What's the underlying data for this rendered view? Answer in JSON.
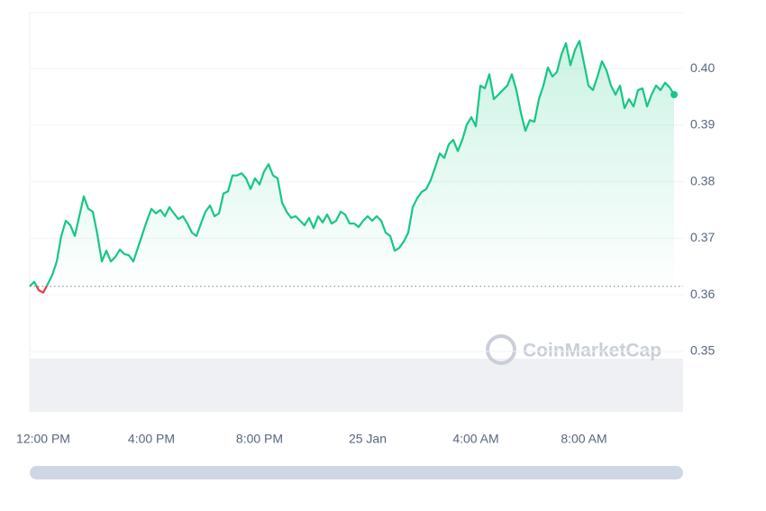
{
  "chart_data": {
    "type": "line",
    "color": "#16c784",
    "down_color": "#ea3943",
    "baseline": 0.3615,
    "watermark": "CoinMarketCap",
    "xlim": [
      -30,
      1420
    ],
    "xticks": [
      {
        "value": 0,
        "label": "12:00 PM"
      },
      {
        "value": 240,
        "label": "4:00 PM"
      },
      {
        "value": 480,
        "label": "8:00 PM"
      },
      {
        "value": 720,
        "label": "25 Jan"
      },
      {
        "value": 960,
        "label": "4:00 AM"
      },
      {
        "value": 1200,
        "label": "8:00 AM"
      }
    ],
    "ylim": [
      0.3393,
      0.4099
    ],
    "yticks": [
      0.35,
      0.36,
      0.37,
      0.38,
      0.39,
      {
        "value": 0.4,
        "label": "0.40"
      }
    ],
    "grid": true,
    "x": [
      -30,
      -20,
      -10,
      0,
      10,
      20,
      30,
      40,
      50,
      60,
      70,
      80,
      90,
      100,
      110,
      120,
      130,
      140,
      150,
      160,
      170,
      180,
      190,
      200,
      210,
      220,
      230,
      240,
      250,
      260,
      270,
      280,
      290,
      300,
      310,
      320,
      330,
      340,
      350,
      360,
      370,
      380,
      390,
      400,
      410,
      420,
      430,
      440,
      450,
      460,
      470,
      480,
      490,
      500,
      510,
      520,
      530,
      540,
      550,
      560,
      570,
      580,
      590,
      600,
      610,
      620,
      630,
      640,
      650,
      660,
      670,
      680,
      690,
      700,
      710,
      720,
      730,
      740,
      750,
      760,
      770,
      780,
      790,
      800,
      810,
      820,
      830,
      840,
      850,
      860,
      870,
      880,
      890,
      900,
      910,
      920,
      930,
      940,
      950,
      960,
      970,
      980,
      990,
      1000,
      1010,
      1020,
      1030,
      1040,
      1050,
      1060,
      1070,
      1080,
      1090,
      1100,
      1110,
      1120,
      1130,
      1140,
      1150,
      1160,
      1170,
      1180,
      1190,
      1200,
      1210,
      1220,
      1230,
      1240,
      1250,
      1260,
      1270,
      1280,
      1290,
      1300,
      1310,
      1320,
      1330,
      1340,
      1350,
      1360,
      1370,
      1380,
      1390,
      1400
    ],
    "values": [
      0.3615,
      0.3623,
      0.3608,
      0.3604,
      0.3619,
      0.3635,
      0.3659,
      0.3704,
      0.3731,
      0.3723,
      0.3704,
      0.3739,
      0.3774,
      0.3752,
      0.3747,
      0.3707,
      0.3659,
      0.3678,
      0.3659,
      0.3667,
      0.368,
      0.3672,
      0.367,
      0.3659,
      0.3683,
      0.3707,
      0.3731,
      0.3752,
      0.3744,
      0.375,
      0.3739,
      0.3755,
      0.3744,
      0.3734,
      0.3739,
      0.3726,
      0.371,
      0.3704,
      0.3726,
      0.3747,
      0.3758,
      0.3739,
      0.3744,
      0.3779,
      0.3783,
      0.3811,
      0.3811,
      0.3815,
      0.3806,
      0.3787,
      0.3806,
      0.3795,
      0.3818,
      0.3831,
      0.3811,
      0.3806,
      0.3763,
      0.3747,
      0.3736,
      0.3739,
      0.3731,
      0.3723,
      0.3736,
      0.3718,
      0.3739,
      0.3728,
      0.3742,
      0.3726,
      0.3731,
      0.3747,
      0.3742,
      0.3726,
      0.3726,
      0.372,
      0.3731,
      0.3739,
      0.3731,
      0.3739,
      0.3731,
      0.371,
      0.3704,
      0.3678,
      0.3683,
      0.3694,
      0.371,
      0.3755,
      0.3771,
      0.3782,
      0.3787,
      0.3803,
      0.3826,
      0.385,
      0.3842,
      0.3866,
      0.3874,
      0.3854,
      0.3874,
      0.3901,
      0.3914,
      0.3898,
      0.397,
      0.3965,
      0.399,
      0.3946,
      0.3954,
      0.3962,
      0.397,
      0.399,
      0.3962,
      0.3922,
      0.389,
      0.3909,
      0.3906,
      0.3946,
      0.397,
      0.4002,
      0.3986,
      0.3994,
      0.4025,
      0.4045,
      0.4006,
      0.4033,
      0.4049,
      0.401,
      0.397,
      0.3962,
      0.3986,
      0.4013,
      0.3997,
      0.397,
      0.3954,
      0.397,
      0.393,
      0.3946,
      0.3933,
      0.3962,
      0.3965,
      0.3933,
      0.3954,
      0.397,
      0.3962,
      0.3975,
      0.3967,
      0.3954
    ]
  }
}
